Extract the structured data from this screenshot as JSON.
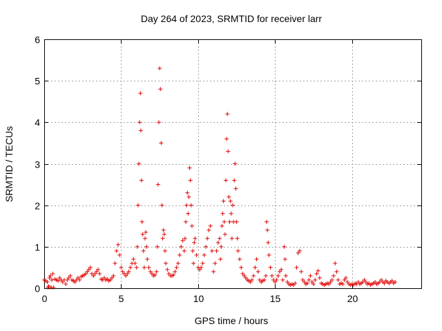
{
  "chart_data": {
    "type": "scatter",
    "title": "Day 264 of 2023, SRMTID for receiver larr",
    "xlabel": "GPS time / hours",
    "ylabel": "SRMTID / TECUs",
    "xlim": [
      0,
      24.5
    ],
    "ylim": [
      0,
      6
    ],
    "xticks": [
      0,
      5,
      10,
      15,
      20
    ],
    "yticks": [
      0,
      1,
      2,
      3,
      4,
      5,
      6
    ],
    "grid": true,
    "marker": "+",
    "color": "#e00000",
    "series": [
      {
        "name": "SRMTID",
        "points": [
          [
            0.0,
            0.2
          ],
          [
            0.1,
            0.18
          ],
          [
            0.2,
            0.15
          ],
          [
            0.25,
            0.02
          ],
          [
            0.3,
            0.05
          ],
          [
            0.35,
            0.25
          ],
          [
            0.4,
            0.3
          ],
          [
            0.45,
            0.02
          ],
          [
            0.5,
            0.2
          ],
          [
            0.55,
            0.35
          ],
          [
            0.6,
            0.02
          ],
          [
            0.7,
            0.22
          ],
          [
            0.8,
            0.2
          ],
          [
            0.9,
            0.18
          ],
          [
            1.0,
            0.25
          ],
          [
            1.1,
            0.2
          ],
          [
            1.2,
            0.15
          ],
          [
            1.3,
            0.2
          ],
          [
            1.4,
            0.1
          ],
          [
            1.5,
            0.2
          ],
          [
            1.6,
            0.25
          ],
          [
            1.7,
            0.3
          ],
          [
            1.8,
            0.2
          ],
          [
            1.9,
            0.18
          ],
          [
            2.0,
            0.15
          ],
          [
            2.1,
            0.2
          ],
          [
            2.2,
            0.25
          ],
          [
            2.3,
            0.2
          ],
          [
            2.4,
            0.28
          ],
          [
            2.5,
            0.3
          ],
          [
            2.6,
            0.32
          ],
          [
            2.7,
            0.35
          ],
          [
            2.8,
            0.4
          ],
          [
            2.9,
            0.45
          ],
          [
            3.0,
            0.5
          ],
          [
            3.1,
            0.35
          ],
          [
            3.2,
            0.3
          ],
          [
            3.3,
            0.35
          ],
          [
            3.4,
            0.4
          ],
          [
            3.5,
            0.45
          ],
          [
            3.6,
            0.35
          ],
          [
            3.7,
            0.22
          ],
          [
            3.8,
            0.2
          ],
          [
            3.9,
            0.25
          ],
          [
            4.0,
            0.2
          ],
          [
            4.1,
            0.22
          ],
          [
            4.2,
            0.18
          ],
          [
            4.3,
            0.2
          ],
          [
            4.4,
            0.25
          ],
          [
            4.5,
            0.3
          ],
          [
            4.6,
            0.6
          ],
          [
            4.7,
            0.9
          ],
          [
            4.8,
            1.05
          ],
          [
            4.9,
            0.8
          ],
          [
            5.0,
            0.5
          ],
          [
            5.1,
            0.4
          ],
          [
            5.2,
            0.35
          ],
          [
            5.3,
            0.3
          ],
          [
            5.4,
            0.35
          ],
          [
            5.5,
            0.4
          ],
          [
            5.6,
            0.5
          ],
          [
            5.7,
            0.6
          ],
          [
            5.8,
            0.7
          ],
          [
            5.9,
            0.6
          ],
          [
            6.0,
            0.5
          ],
          [
            6.05,
            1.0
          ],
          [
            6.1,
            2.0
          ],
          [
            6.15,
            3.0
          ],
          [
            6.2,
            4.0
          ],
          [
            6.25,
            4.7
          ],
          [
            6.28,
            3.8
          ],
          [
            6.32,
            2.6
          ],
          [
            6.36,
            1.6
          ],
          [
            6.4,
            1.3
          ],
          [
            6.45,
            0.9
          ],
          [
            6.5,
            0.5
          ],
          [
            6.55,
            1.2
          ],
          [
            6.6,
            1.35
          ],
          [
            6.65,
            1.0
          ],
          [
            6.7,
            0.7
          ],
          [
            6.8,
            0.5
          ],
          [
            6.9,
            0.4
          ],
          [
            7.0,
            0.35
          ],
          [
            7.1,
            0.3
          ],
          [
            7.2,
            0.32
          ],
          [
            7.3,
            0.4
          ],
          [
            7.35,
            1.0
          ],
          [
            7.4,
            2.5
          ],
          [
            7.45,
            4.0
          ],
          [
            7.5,
            5.3
          ],
          [
            7.55,
            4.8
          ],
          [
            7.6,
            3.5
          ],
          [
            7.65,
            2.0
          ],
          [
            7.7,
            1.2
          ],
          [
            7.75,
            1.4
          ],
          [
            7.8,
            1.3
          ],
          [
            7.85,
            0.9
          ],
          [
            7.9,
            0.6
          ],
          [
            8.0,
            0.45
          ],
          [
            8.1,
            0.35
          ],
          [
            8.2,
            0.3
          ],
          [
            8.3,
            0.3
          ],
          [
            8.4,
            0.32
          ],
          [
            8.5,
            0.4
          ],
          [
            8.6,
            0.5
          ],
          [
            8.7,
            0.6
          ],
          [
            8.8,
            0.8
          ],
          [
            8.9,
            1.0
          ],
          [
            9.0,
            1.15
          ],
          [
            9.1,
            0.9
          ],
          [
            9.15,
            1.2
          ],
          [
            9.2,
            1.6
          ],
          [
            9.25,
            2.0
          ],
          [
            9.3,
            2.3
          ],
          [
            9.35,
            1.8
          ],
          [
            9.4,
            2.2
          ],
          [
            9.45,
            2.9
          ],
          [
            9.5,
            2.6
          ],
          [
            9.55,
            2.0
          ],
          [
            9.6,
            1.5
          ],
          [
            9.65,
            0.9
          ],
          [
            9.7,
            0.6
          ],
          [
            9.75,
            1.1
          ],
          [
            9.8,
            1.2
          ],
          [
            9.9,
            0.8
          ],
          [
            10.0,
            0.5
          ],
          [
            10.1,
            0.45
          ],
          [
            10.2,
            0.5
          ],
          [
            10.3,
            0.6
          ],
          [
            10.4,
            0.8
          ],
          [
            10.5,
            1.0
          ],
          [
            10.6,
            1.2
          ],
          [
            10.7,
            1.4
          ],
          [
            10.8,
            1.5
          ],
          [
            10.9,
            0.9
          ],
          [
            11.0,
            0.4
          ],
          [
            11.1,
            0.6
          ],
          [
            11.2,
            0.9
          ],
          [
            11.3,
            1.1
          ],
          [
            11.4,
            1.2
          ],
          [
            11.45,
            0.7
          ],
          [
            11.5,
            1.0
          ],
          [
            11.55,
            1.5
          ],
          [
            11.6,
            1.8
          ],
          [
            11.65,
            2.1
          ],
          [
            11.7,
            1.6
          ],
          [
            11.75,
            1.3
          ],
          [
            11.8,
            2.6
          ],
          [
            11.85,
            3.6
          ],
          [
            11.9,
            4.2
          ],
          [
            11.95,
            3.3
          ],
          [
            12.0,
            2.2
          ],
          [
            12.05,
            1.6
          ],
          [
            12.1,
            2.1
          ],
          [
            12.15,
            1.8
          ],
          [
            12.2,
            1.2
          ],
          [
            12.25,
            2.0
          ],
          [
            12.3,
            1.6
          ],
          [
            12.35,
            2.6
          ],
          [
            12.4,
            3.0
          ],
          [
            12.45,
            2.4
          ],
          [
            12.5,
            1.6
          ],
          [
            12.55,
            1.2
          ],
          [
            12.6,
            0.9
          ],
          [
            12.7,
            0.7
          ],
          [
            12.8,
            0.5
          ],
          [
            12.9,
            0.35
          ],
          [
            13.0,
            0.3
          ],
          [
            13.1,
            0.25
          ],
          [
            13.2,
            0.2
          ],
          [
            13.3,
            0.18
          ],
          [
            13.4,
            0.15
          ],
          [
            13.5,
            0.2
          ],
          [
            13.6,
            0.3
          ],
          [
            13.7,
            0.5
          ],
          [
            13.8,
            0.7
          ],
          [
            13.9,
            0.4
          ],
          [
            14.0,
            0.2
          ],
          [
            14.1,
            0.15
          ],
          [
            14.2,
            0.18
          ],
          [
            14.3,
            0.2
          ],
          [
            14.4,
            0.3
          ],
          [
            14.45,
            1.6
          ],
          [
            14.5,
            1.4
          ],
          [
            14.55,
            1.1
          ],
          [
            14.6,
            0.8
          ],
          [
            14.7,
            0.5
          ],
          [
            14.8,
            0.3
          ],
          [
            14.9,
            0.2
          ],
          [
            15.0,
            0.15
          ],
          [
            15.1,
            0.2
          ],
          [
            15.2,
            0.3
          ],
          [
            15.3,
            0.4
          ],
          [
            15.4,
            0.45
          ],
          [
            15.5,
            0.2
          ],
          [
            15.6,
            1.0
          ],
          [
            15.65,
            0.7
          ],
          [
            15.7,
            0.3
          ],
          [
            15.8,
            0.15
          ],
          [
            15.9,
            0.1
          ],
          [
            16.0,
            0.08
          ],
          [
            16.1,
            0.1
          ],
          [
            16.2,
            0.08
          ],
          [
            16.3,
            0.12
          ],
          [
            16.4,
            0.5
          ],
          [
            16.5,
            0.85
          ],
          [
            16.6,
            0.9
          ],
          [
            16.7,
            0.4
          ],
          [
            16.8,
            0.2
          ],
          [
            16.9,
            0.15
          ],
          [
            17.0,
            0.1
          ],
          [
            17.1,
            0.12
          ],
          [
            17.2,
            0.2
          ],
          [
            17.3,
            0.3
          ],
          [
            17.4,
            0.15
          ],
          [
            17.5,
            0.1
          ],
          [
            17.6,
            0.2
          ],
          [
            17.7,
            0.35
          ],
          [
            17.8,
            0.42
          ],
          [
            17.9,
            0.25
          ],
          [
            18.0,
            0.12
          ],
          [
            18.1,
            0.1
          ],
          [
            18.2,
            0.08
          ],
          [
            18.3,
            0.1
          ],
          [
            18.4,
            0.12
          ],
          [
            18.5,
            0.1
          ],
          [
            18.6,
            0.15
          ],
          [
            18.7,
            0.2
          ],
          [
            18.8,
            0.3
          ],
          [
            18.9,
            0.6
          ],
          [
            19.0,
            0.4
          ],
          [
            19.1,
            0.2
          ],
          [
            19.2,
            0.1
          ],
          [
            19.3,
            0.12
          ],
          [
            19.4,
            0.1
          ],
          [
            19.5,
            0.2
          ],
          [
            19.6,
            0.25
          ],
          [
            19.7,
            0.15
          ],
          [
            19.8,
            0.1
          ],
          [
            19.9,
            0.08
          ],
          [
            20.0,
            0.1
          ],
          [
            20.1,
            0.08
          ],
          [
            20.2,
            0.12
          ],
          [
            20.3,
            0.1
          ],
          [
            20.4,
            0.15
          ],
          [
            20.5,
            0.1
          ],
          [
            20.6,
            0.12
          ],
          [
            20.7,
            0.15
          ],
          [
            20.8,
            0.2
          ],
          [
            20.9,
            0.15
          ],
          [
            21.0,
            0.1
          ],
          [
            21.1,
            0.12
          ],
          [
            21.2,
            0.08
          ],
          [
            21.3,
            0.1
          ],
          [
            21.4,
            0.12
          ],
          [
            21.5,
            0.15
          ],
          [
            21.6,
            0.1
          ],
          [
            21.7,
            0.12
          ],
          [
            21.8,
            0.15
          ],
          [
            21.9,
            0.2
          ],
          [
            22.0,
            0.15
          ],
          [
            22.1,
            0.12
          ],
          [
            22.2,
            0.18
          ],
          [
            22.3,
            0.15
          ],
          [
            22.4,
            0.12
          ],
          [
            22.5,
            0.15
          ],
          [
            22.6,
            0.18
          ],
          [
            22.7,
            0.12
          ],
          [
            22.8,
            0.15
          ]
        ]
      }
    ]
  }
}
